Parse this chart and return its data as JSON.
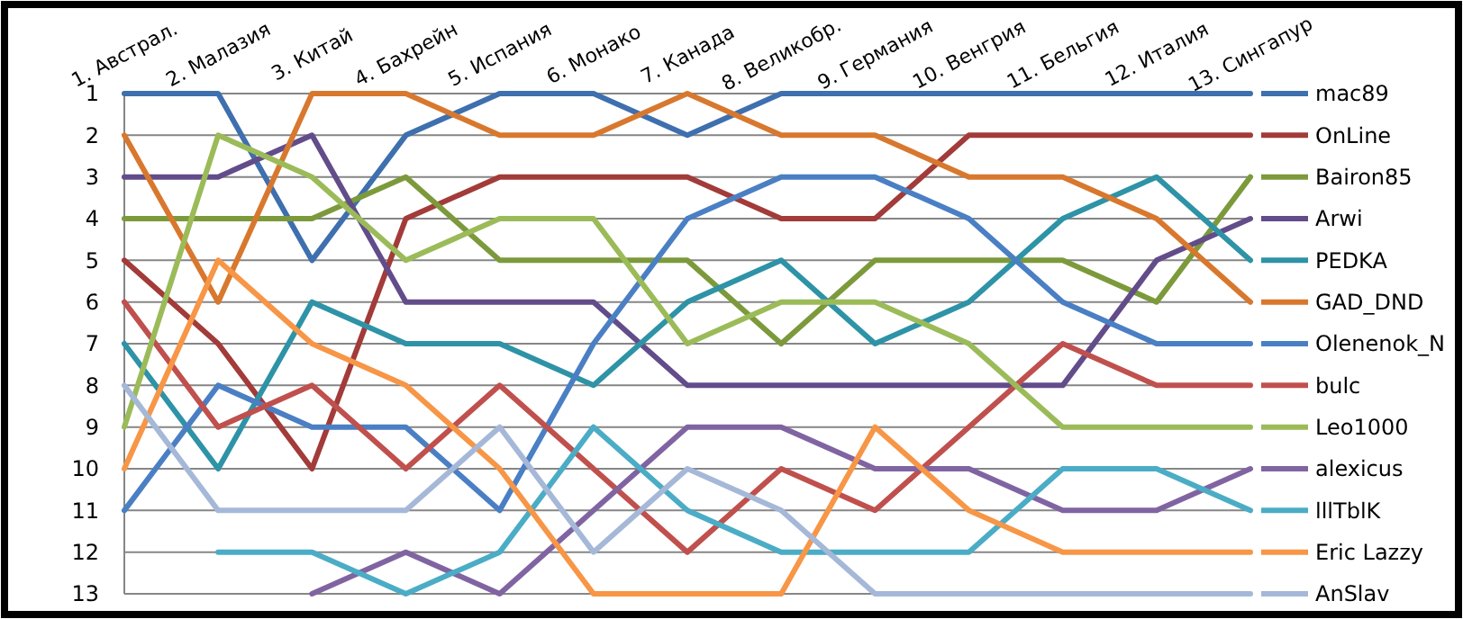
{
  "chart_data": {
    "type": "line",
    "categories": [
      "1. Австрал.",
      "2. Малазия",
      "3. Китай",
      "4. Бахрейн",
      "5. Испания",
      "6. Монако",
      "7. Канада",
      "8. Великобр.",
      "9. Германия",
      "10. Венгрия",
      "11. Бельгия",
      "12. Италия",
      "13. Сингапур"
    ],
    "ylim": [
      13,
      1
    ],
    "yticks": [
      1,
      2,
      3,
      4,
      5,
      6,
      7,
      8,
      9,
      10,
      11,
      12,
      13
    ],
    "grid": "y",
    "legend": "right",
    "marker": "none",
    "line_style": "solid",
    "series": [
      {
        "name": "mac89",
        "color": "#3e6fae",
        "values": [
          1,
          1,
          5,
          2,
          1,
          1,
          2,
          1,
          1,
          1,
          1,
          1,
          1
        ]
      },
      {
        "name": "OnLine",
        "color": "#a23b39",
        "values": [
          5,
          7,
          10,
          4,
          3,
          3,
          3,
          4,
          4,
          2,
          2,
          2,
          2
        ]
      },
      {
        "name": "Bairon85",
        "color": "#7c9a3b",
        "values": [
          4,
          4,
          4,
          3,
          5,
          5,
          5,
          7,
          5,
          5,
          5,
          6,
          3
        ]
      },
      {
        "name": "Arwi",
        "color": "#634c8a",
        "values": [
          3,
          3,
          2,
          6,
          6,
          6,
          8,
          8,
          8,
          8,
          8,
          5,
          4
        ]
      },
      {
        "name": "PEDKA",
        "color": "#2e93a6",
        "values": [
          7,
          10,
          6,
          7,
          7,
          8,
          6,
          5,
          7,
          6,
          4,
          3,
          5
        ]
      },
      {
        "name": "GAD_DND",
        "color": "#d8782e",
        "values": [
          2,
          6,
          1,
          1,
          2,
          2,
          1,
          2,
          2,
          3,
          3,
          4,
          6
        ]
      },
      {
        "name": "Olenenok_N",
        "color": "#4a7fc4",
        "values": [
          11,
          8,
          9,
          9,
          11,
          7,
          4,
          3,
          3,
          4,
          6,
          7,
          7
        ]
      },
      {
        "name": "bulc",
        "color": "#c0504d",
        "values": [
          6,
          9,
          8,
          10,
          8,
          10,
          12,
          10,
          11,
          9,
          7,
          8,
          8
        ]
      },
      {
        "name": "Leo1000",
        "color": "#9bbb59",
        "values": [
          9,
          2,
          3,
          5,
          4,
          4,
          7,
          6,
          6,
          7,
          9,
          9,
          9
        ]
      },
      {
        "name": "alexicus",
        "color": "#8064a2",
        "values": [
          null,
          null,
          13,
          12,
          13,
          11,
          9,
          9,
          10,
          10,
          11,
          11,
          10
        ]
      },
      {
        "name": "lllTblK",
        "color": "#4bacc6",
        "values": [
          null,
          12,
          12,
          13,
          12,
          9,
          11,
          12,
          12,
          12,
          10,
          10,
          11
        ]
      },
      {
        "name": "Eric Lazzy",
        "color": "#f79646",
        "values": [
          10,
          5,
          7,
          8,
          10,
          13,
          13,
          13,
          9,
          11,
          12,
          12,
          12
        ]
      },
      {
        "name": "AnSlav",
        "color": "#a5b8d8",
        "values": [
          8,
          11,
          11,
          11,
          9,
          12,
          10,
          11,
          13,
          13,
          13,
          13,
          13
        ]
      }
    ]
  }
}
